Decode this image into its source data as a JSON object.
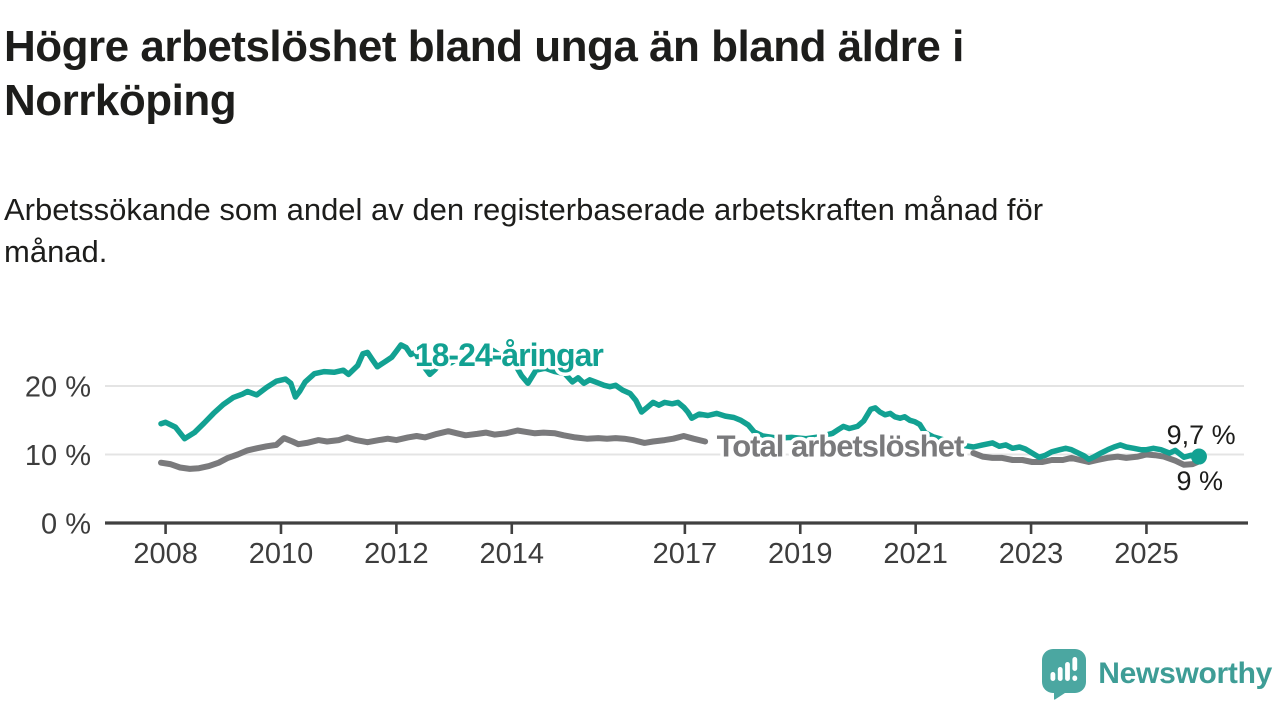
{
  "header": {
    "title": "Högre arbetslöshet bland unga än bland äldre i\nNorrköping",
    "subtitle": "Arbetssökande som andel av den registerbaserade arbetskraften månad för\nmånad."
  },
  "footer": {
    "brand": "Newsworthy"
  },
  "colors": {
    "youth_line": "#12a192",
    "total_line": "#7a7a7c",
    "axis": "#404040",
    "tick_label": "#3d3d3d",
    "gridline": "#e4e4e4",
    "text": "#1d1d1b",
    "logo_bubble": "#4ba7a1",
    "logo_text": "#3e9d96"
  },
  "chart_data": {
    "type": "line",
    "title": "Högre arbetslöshet bland unga än bland äldre i Norrköping",
    "subtitle": "Arbetssökande som andel av den registerbaserade arbetskraften månad för månad.",
    "xlabel": "",
    "ylabel": "",
    "xlim": [
      2006.95,
      2026.76
    ],
    "ylim": [
      0,
      28.2
    ],
    "grid": "horizontal",
    "legend_position": "inline-labels",
    "y_ticks": [
      {
        "value": 0,
        "label": "0 %"
      },
      {
        "value": 10,
        "label": "10 %"
      },
      {
        "value": 20,
        "label": "20 %"
      }
    ],
    "x_ticks": [
      {
        "value": 2008,
        "label": "2008"
      },
      {
        "value": 2010,
        "label": "2010"
      },
      {
        "value": 2012,
        "label": "2012"
      },
      {
        "value": 2014,
        "label": "2014"
      },
      {
        "value": 2017,
        "label": "2017"
      },
      {
        "value": 2019,
        "label": "2019"
      },
      {
        "value": 2021,
        "label": "2021"
      },
      {
        "value": 2023,
        "label": "2023"
      },
      {
        "value": 2025,
        "label": "2025"
      }
    ],
    "series": [
      {
        "name": "Total arbetslöshet",
        "color": "#7a7a7c",
        "stroke_width": 6,
        "segments": [
          [
            [
              2007.92,
              8.8
            ],
            [
              2008.08,
              8.6
            ],
            [
              2008.25,
              8.1
            ],
            [
              2008.42,
              7.9
            ],
            [
              2008.58,
              8.0
            ],
            [
              2008.75,
              8.3
            ],
            [
              2008.92,
              8.8
            ],
            [
              2009.08,
              9.5
            ],
            [
              2009.25,
              10.0
            ],
            [
              2009.42,
              10.6
            ],
            [
              2009.58,
              10.9
            ],
            [
              2009.75,
              11.2
            ],
            [
              2009.92,
              11.4
            ],
            [
              2010.05,
              12.4
            ],
            [
              2010.2,
              11.9
            ],
            [
              2010.3,
              11.5
            ],
            [
              2010.45,
              11.7
            ],
            [
              2010.65,
              12.1
            ],
            [
              2010.8,
              11.9
            ],
            [
              2011.0,
              12.1
            ],
            [
              2011.15,
              12.5
            ],
            [
              2011.3,
              12.1
            ],
            [
              2011.5,
              11.8
            ],
            [
              2011.7,
              12.1
            ],
            [
              2011.85,
              12.3
            ],
            [
              2012.0,
              12.1
            ],
            [
              2012.2,
              12.5
            ],
            [
              2012.35,
              12.7
            ],
            [
              2012.5,
              12.5
            ],
            [
              2012.7,
              13.0
            ],
            [
              2012.9,
              13.4
            ],
            [
              2013.05,
              13.1
            ],
            [
              2013.2,
              12.8
            ],
            [
              2013.4,
              13.0
            ],
            [
              2013.55,
              13.2
            ],
            [
              2013.7,
              12.9
            ],
            [
              2013.9,
              13.1
            ],
            [
              2014.1,
              13.5
            ],
            [
              2014.25,
              13.3
            ],
            [
              2014.4,
              13.1
            ],
            [
              2014.55,
              13.2
            ],
            [
              2014.75,
              13.1
            ],
            [
              2014.9,
              12.8
            ],
            [
              2015.1,
              12.5
            ],
            [
              2015.3,
              12.3
            ],
            [
              2015.5,
              12.4
            ],
            [
              2015.65,
              12.3
            ],
            [
              2015.8,
              12.4
            ],
            [
              2015.95,
              12.3
            ],
            [
              2016.1,
              12.1
            ],
            [
              2016.3,
              11.7
            ],
            [
              2016.45,
              11.9
            ],
            [
              2016.65,
              12.1
            ],
            [
              2016.8,
              12.3
            ],
            [
              2016.98,
              12.7
            ],
            [
              2017.15,
              12.3
            ],
            [
              2017.35,
              11.9
            ]
          ],
          [
            [
              2022.0,
              10.2
            ],
            [
              2022.16,
              9.7
            ],
            [
              2022.33,
              9.5
            ],
            [
              2022.5,
              9.5
            ],
            [
              2022.68,
              9.2
            ],
            [
              2022.85,
              9.2
            ],
            [
              2023.02,
              8.9
            ],
            [
              2023.2,
              8.9
            ],
            [
              2023.36,
              9.2
            ],
            [
              2023.55,
              9.2
            ],
            [
              2023.7,
              9.5
            ],
            [
              2023.85,
              9.2
            ],
            [
              2024.0,
              8.9
            ],
            [
              2024.15,
              9.2
            ],
            [
              2024.32,
              9.5
            ],
            [
              2024.5,
              9.7
            ],
            [
              2024.65,
              9.5
            ],
            [
              2024.85,
              9.7
            ],
            [
              2025.0,
              10.0
            ],
            [
              2025.15,
              9.9
            ],
            [
              2025.3,
              9.7
            ],
            [
              2025.5,
              9.1
            ],
            [
              2025.65,
              8.5
            ],
            [
              2025.8,
              8.6
            ],
            [
              2025.91,
              9.0
            ]
          ]
        ]
      },
      {
        "name": "18-24-åringar",
        "color": "#12a192",
        "stroke_width": 5.5,
        "segments": [
          [
            [
              2007.92,
              14.5
            ],
            [
              2008.0,
              14.7
            ],
            [
              2008.17,
              14.0
            ],
            [
              2008.33,
              12.3
            ],
            [
              2008.5,
              13.2
            ],
            [
              2008.67,
              14.6
            ],
            [
              2008.83,
              16.0
            ],
            [
              2009.0,
              17.3
            ],
            [
              2009.17,
              18.3
            ],
            [
              2009.33,
              18.8
            ],
            [
              2009.42,
              19.2
            ],
            [
              2009.58,
              18.7
            ],
            [
              2009.75,
              19.8
            ],
            [
              2009.92,
              20.7
            ],
            [
              2010.08,
              21.0
            ],
            [
              2010.17,
              20.4
            ],
            [
              2010.25,
              18.4
            ],
            [
              2010.33,
              19.3
            ],
            [
              2010.42,
              20.6
            ],
            [
              2010.58,
              21.8
            ],
            [
              2010.75,
              22.1
            ],
            [
              2010.92,
              22.0
            ],
            [
              2011.08,
              22.3
            ],
            [
              2011.17,
              21.7
            ],
            [
              2011.33,
              23.0
            ],
            [
              2011.42,
              24.7
            ],
            [
              2011.5,
              24.9
            ],
            [
              2011.58,
              23.9
            ],
            [
              2011.67,
              22.8
            ],
            [
              2011.83,
              23.7
            ],
            [
              2011.92,
              24.2
            ],
            [
              2012.0,
              25.1
            ],
            [
              2012.08,
              26.0
            ],
            [
              2012.17,
              25.6
            ],
            [
              2012.25,
              24.6
            ],
            [
              2012.33,
              24.9
            ],
            [
              2012.42,
              23.4
            ],
            [
              2012.5,
              22.6
            ],
            [
              2012.58,
              21.7
            ],
            [
              2012.67,
              22.4
            ],
            [
              2012.75,
              23.2
            ],
            [
              2012.83,
              23.7
            ],
            [
              2012.95,
              23.4
            ],
            [
              2013.08,
              24.1
            ],
            [
              2013.17,
              23.6
            ],
            [
              2013.3,
              22.8
            ],
            [
              2013.42,
              24.0
            ],
            [
              2013.5,
              24.9
            ],
            [
              2013.58,
              25.5
            ],
            [
              2013.67,
              25.2
            ],
            [
              2013.83,
              24.3
            ],
            [
              2013.95,
              23.5
            ],
            [
              2014.08,
              22.8
            ],
            [
              2014.17,
              21.5
            ],
            [
              2014.28,
              20.4
            ],
            [
              2014.42,
              22.3
            ],
            [
              2014.58,
              22.6
            ],
            [
              2014.75,
              22.1
            ],
            [
              2014.92,
              21.8
            ],
            [
              2015.05,
              20.6
            ],
            [
              2015.15,
              21.2
            ],
            [
              2015.25,
              20.4
            ],
            [
              2015.35,
              20.9
            ],
            [
              2015.45,
              20.6
            ],
            [
              2015.6,
              20.1
            ],
            [
              2015.7,
              19.9
            ],
            [
              2015.8,
              20.1
            ],
            [
              2015.92,
              19.4
            ],
            [
              2016.05,
              18.9
            ],
            [
              2016.15,
              17.9
            ],
            [
              2016.25,
              16.2
            ],
            [
              2016.35,
              16.9
            ],
            [
              2016.45,
              17.6
            ],
            [
              2016.55,
              17.2
            ],
            [
              2016.65,
              17.6
            ],
            [
              2016.78,
              17.4
            ],
            [
              2016.88,
              17.6
            ],
            [
              2016.98,
              16.9
            ],
            [
              2017.05,
              16.2
            ],
            [
              2017.12,
              15.3
            ],
            [
              2017.25,
              15.9
            ],
            [
              2017.4,
              15.7
            ],
            [
              2017.55,
              16.0
            ],
            [
              2017.7,
              15.6
            ],
            [
              2017.85,
              15.4
            ],
            [
              2017.97,
              15.0
            ],
            [
              2018.1,
              14.3
            ],
            [
              2018.2,
              13.3
            ],
            [
              2018.35,
              12.7
            ],
            [
              2018.6,
              12.4
            ],
            [
              2018.85,
              12.5
            ],
            [
              2019.1,
              12.3
            ],
            [
              2019.35,
              12.6
            ],
            [
              2019.56,
              13.1
            ],
            [
              2019.67,
              13.7
            ],
            [
              2019.75,
              14.1
            ],
            [
              2019.85,
              13.8
            ],
            [
              2019.99,
              14.1
            ],
            [
              2020.1,
              14.9
            ],
            [
              2020.22,
              16.6
            ],
            [
              2020.3,
              16.8
            ],
            [
              2020.38,
              16.2
            ],
            [
              2020.47,
              15.8
            ],
            [
              2020.56,
              16.0
            ],
            [
              2020.64,
              15.5
            ],
            [
              2020.73,
              15.3
            ],
            [
              2020.81,
              15.5
            ],
            [
              2020.9,
              15.0
            ],
            [
              2020.98,
              14.8
            ],
            [
              2021.07,
              14.4
            ],
            [
              2021.16,
              13.2
            ],
            [
              2021.3,
              12.6
            ],
            [
              2021.5,
              12.1
            ],
            [
              2021.7,
              11.7
            ],
            [
              2021.85,
              11.3
            ],
            [
              2022.0,
              11.1
            ],
            [
              2022.16,
              11.4
            ],
            [
              2022.33,
              11.7
            ],
            [
              2022.45,
              11.2
            ],
            [
              2022.56,
              11.4
            ],
            [
              2022.68,
              10.9
            ],
            [
              2022.8,
              11.1
            ],
            [
              2022.9,
              10.8
            ],
            [
              2023.02,
              10.2
            ],
            [
              2023.14,
              9.6
            ],
            [
              2023.25,
              9.9
            ],
            [
              2023.36,
              10.4
            ],
            [
              2023.5,
              10.7
            ],
            [
              2023.6,
              10.9
            ],
            [
              2023.7,
              10.7
            ],
            [
              2023.82,
              10.2
            ],
            [
              2023.92,
              9.8
            ],
            [
              2024.0,
              9.3
            ],
            [
              2024.1,
              9.7
            ],
            [
              2024.21,
              10.2
            ],
            [
              2024.33,
              10.7
            ],
            [
              2024.44,
              11.1
            ],
            [
              2024.55,
              11.4
            ],
            [
              2024.65,
              11.1
            ],
            [
              2024.78,
              10.9
            ],
            [
              2024.9,
              10.7
            ],
            [
              2025.0,
              10.7
            ],
            [
              2025.12,
              10.9
            ],
            [
              2025.25,
              10.7
            ],
            [
              2025.4,
              10.2
            ],
            [
              2025.5,
              10.6
            ],
            [
              2025.65,
              9.6
            ],
            [
              2025.78,
              9.9
            ],
            [
              2025.91,
              9.7
            ]
          ]
        ]
      }
    ],
    "series_labels": [
      {
        "text": "18-24-åringar",
        "color": "#12a192",
        "x": 2012.32,
        "y": 22.9,
        "font_size": 32
      },
      {
        "text": "Total arbetslöshet",
        "color": "#7a7a7c",
        "x": 2017.55,
        "y": 9.7,
        "font_size": 31
      }
    ],
    "end_labels": [
      {
        "text": "9,7 %",
        "x": 2025.35,
        "y": 11.55,
        "series": "18-24-åringar"
      },
      {
        "text": "9 %",
        "x": 2025.52,
        "y": 4.82,
        "series": "Total arbetslöshet"
      }
    ],
    "end_marker": {
      "series": "18-24-åringar",
      "x": 2025.91,
      "y": 9.7,
      "radius": 8
    }
  }
}
